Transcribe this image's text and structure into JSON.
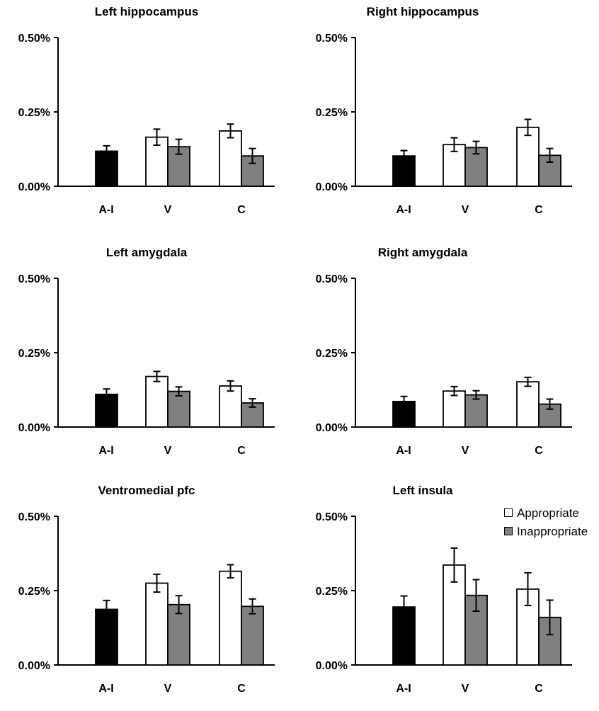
{
  "chart_data": [
    {
      "type": "bar",
      "title": "Left hippocampus",
      "categories": [
        "A-I",
        "V",
        "C"
      ],
      "yticks": [
        "0.00%",
        "0.25%",
        "0.50%"
      ],
      "ylim": [
        0,
        0.5
      ],
      "series": [
        {
          "values": [
            0.118,
            null,
            null
          ],
          "errors": [
            0.018,
            null,
            null
          ]
        },
        {
          "values": [
            null,
            0.165,
            0.186
          ],
          "errors": [
            null,
            0.027,
            0.023
          ]
        },
        {
          "values": [
            null,
            0.133,
            0.102
          ],
          "errors": [
            null,
            0.025,
            0.025
          ]
        }
      ]
    },
    {
      "type": "bar",
      "title": "Right hippocampus",
      "categories": [
        "A-I",
        "V",
        "C"
      ],
      "yticks": [
        "0.00%",
        "0.25%",
        "0.50%"
      ],
      "ylim": [
        0,
        0.5
      ],
      "series": [
        {
          "values": [
            0.102,
            null,
            null
          ],
          "errors": [
            0.018,
            null,
            null
          ]
        },
        {
          "values": [
            null,
            0.14,
            0.198
          ],
          "errors": [
            null,
            0.023,
            0.027
          ]
        },
        {
          "values": [
            null,
            0.13,
            0.104
          ],
          "errors": [
            null,
            0.021,
            0.023
          ]
        }
      ]
    },
    {
      "type": "bar",
      "title": "Left amygdala",
      "categories": [
        "A-I",
        "V",
        "C"
      ],
      "yticks": [
        "0.00%",
        "0.25%",
        "0.50%"
      ],
      "ylim": [
        0,
        0.5
      ],
      "series": [
        {
          "values": [
            0.11,
            null,
            null
          ],
          "errors": [
            0.018,
            null,
            null
          ]
        },
        {
          "values": [
            null,
            0.17,
            0.138
          ],
          "errors": [
            null,
            0.017,
            0.017
          ]
        },
        {
          "values": [
            null,
            0.12,
            0.081
          ],
          "errors": [
            null,
            0.015,
            0.014
          ]
        }
      ]
    },
    {
      "type": "bar",
      "title": "Right amygdala",
      "categories": [
        "A-I",
        "V",
        "C"
      ],
      "yticks": [
        "0.00%",
        "0.25%",
        "0.50%"
      ],
      "ylim": [
        0,
        0.5
      ],
      "series": [
        {
          "values": [
            0.086,
            null,
            null
          ],
          "errors": [
            0.017,
            null,
            null
          ]
        },
        {
          "values": [
            null,
            0.121,
            0.152
          ],
          "errors": [
            null,
            0.015,
            0.015
          ]
        },
        {
          "values": [
            null,
            0.108,
            0.077
          ],
          "errors": [
            null,
            0.014,
            0.017
          ]
        }
      ]
    },
    {
      "type": "bar",
      "title": "Ventromedial pfc",
      "categories": [
        "A-I",
        "V",
        "C"
      ],
      "yticks": [
        "0.00%",
        "0.25%",
        "0.50%"
      ],
      "ylim": [
        0,
        0.5
      ],
      "series": [
        {
          "values": [
            0.187,
            null,
            null
          ],
          "errors": [
            0.03,
            null,
            null
          ]
        },
        {
          "values": [
            null,
            0.275,
            0.315
          ],
          "errors": [
            null,
            0.03,
            0.022
          ]
        },
        {
          "values": [
            null,
            0.203,
            0.197
          ],
          "errors": [
            null,
            0.03,
            0.025
          ]
        }
      ]
    },
    {
      "type": "bar",
      "title": "Left insula",
      "categories": [
        "A-I",
        "V",
        "C"
      ],
      "yticks": [
        "0.00%",
        "0.25%",
        "0.50%"
      ],
      "ylim": [
        0,
        0.5
      ],
      "series": [
        {
          "values": [
            0.195,
            null,
            null
          ],
          "errors": [
            0.037,
            null,
            null
          ]
        },
        {
          "values": [
            null,
            0.336,
            0.255
          ],
          "errors": [
            null,
            0.057,
            0.055
          ]
        },
        {
          "values": [
            null,
            0.234,
            0.16
          ],
          "errors": [
            null,
            0.053,
            0.058
          ]
        }
      ]
    }
  ],
  "legend": {
    "placement": "top-right of bottom-right panel",
    "items": [
      {
        "label": "Appropriate",
        "color": "#ffffff"
      },
      {
        "label": "Inappropriate",
        "color": "#808080"
      }
    ]
  },
  "colors": {
    "bar_AI": "#000000",
    "bar_appropriate": "#ffffff",
    "bar_inappropriate": "#808080",
    "axis": "#000000"
  }
}
